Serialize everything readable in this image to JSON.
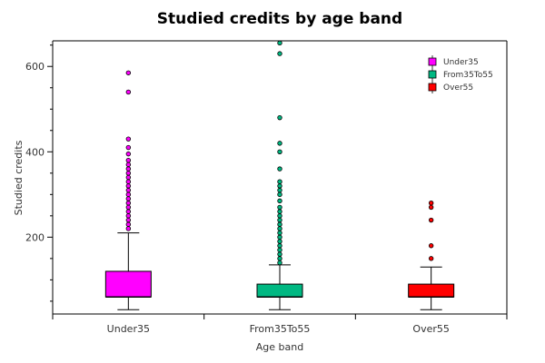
{
  "chart_data": {
    "type": "boxplot",
    "title": "Studied credits by age band",
    "xlabel": "Age band",
    "ylabel": "Studied credits",
    "categories": [
      "Under35",
      "From35To55",
      "Over55"
    ],
    "ylim": [
      20,
      660
    ],
    "yticks": [
      200,
      400,
      600
    ],
    "grid": false,
    "legend_position": "top-right",
    "series": [
      {
        "name": "Under35",
        "color": "#ff00ff",
        "whisker_low": 30,
        "q1": 60,
        "median": 60,
        "q3": 120,
        "whisker_high": 210,
        "outliers": [
          220,
          230,
          240,
          250,
          260,
          270,
          280,
          290,
          300,
          310,
          320,
          330,
          340,
          350,
          360,
          370,
          380,
          395,
          410,
          430,
          540,
          585
        ]
      },
      {
        "name": "From35To55",
        "color": "#00b882",
        "whisker_low": 30,
        "q1": 60,
        "median": 60,
        "q3": 90,
        "whisker_high": 135,
        "outliers": [
          140,
          150,
          160,
          170,
          180,
          190,
          200,
          210,
          220,
          230,
          240,
          250,
          260,
          270,
          285,
          300,
          310,
          320,
          330,
          360,
          400,
          420,
          480,
          630,
          655
        ]
      },
      {
        "name": "Over55",
        "color": "#ff0000",
        "whisker_low": 30,
        "q1": 60,
        "median": 60,
        "q3": 90,
        "whisker_high": 130,
        "outliers": [
          150,
          180,
          240,
          270,
          280
        ]
      }
    ]
  }
}
